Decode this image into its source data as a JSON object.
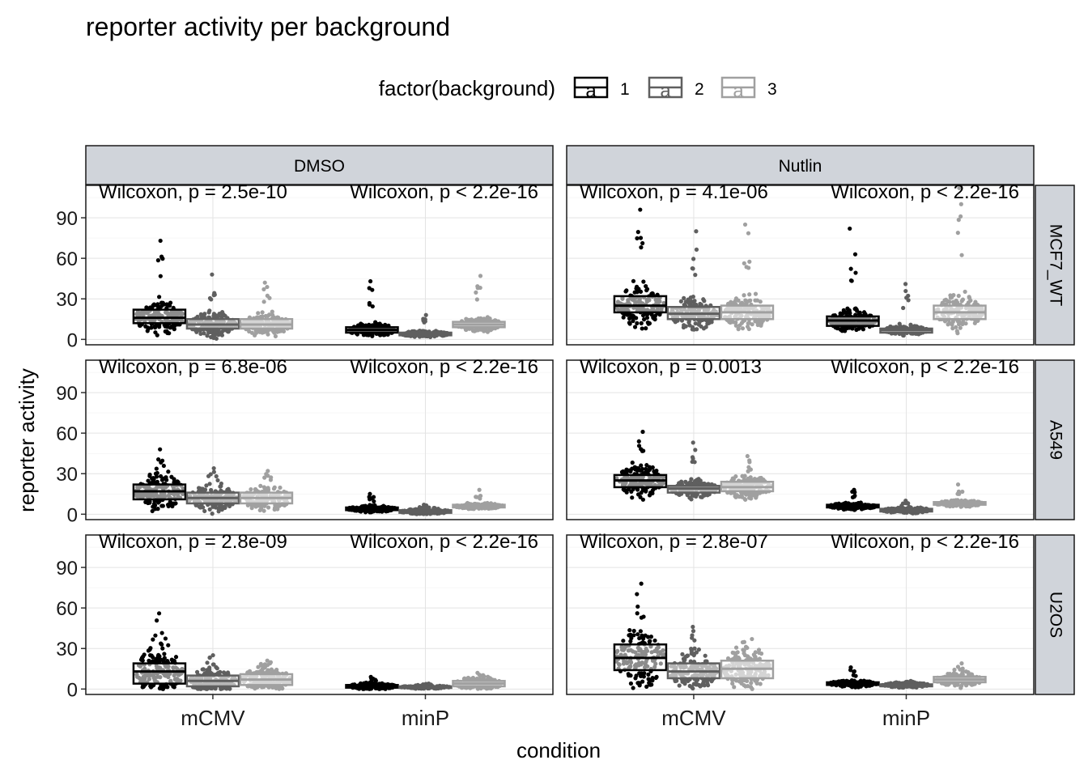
{
  "chart_data": {
    "type": "boxplot",
    "title": "reporter activity per background",
    "xlabel": "condition",
    "ylabel": "reporter activity",
    "ylim": [
      -4,
      114
    ],
    "yticks": [
      0,
      30,
      60,
      90
    ],
    "grid": true,
    "legend": {
      "title": "factor(background)",
      "placement": "top",
      "entries": [
        "1",
        "2",
        "3"
      ],
      "key_glyph": "a"
    },
    "colors": {
      "1": "#000000",
      "2": "#5f5f5f",
      "3": "#a0a0a0"
    },
    "categories": [
      "mCMV",
      "minP"
    ],
    "facet_cols": [
      "DMSO",
      "Nutlin"
    ],
    "facet_rows": [
      "MCF7_WT",
      "A549",
      "U2OS"
    ],
    "panels": [
      {
        "row": "MCF7_WT",
        "col": "DMSO",
        "annotations": [
          "Wilcoxon, p = 2.5e-10",
          "Wilcoxon, p < 2.2e-16"
        ],
        "groups": {
          "mCMV": [
            {
              "bg": "1",
              "q1": 12,
              "median": 16,
              "q3": 22,
              "max": 73
            },
            {
              "bg": "2",
              "q1": 8,
              "median": 11,
              "q3": 15,
              "max": 48
            },
            {
              "bg": "3",
              "q1": 8,
              "median": 11,
              "q3": 15,
              "max": 42
            }
          ],
          "minP": [
            {
              "bg": "1",
              "q1": 5,
              "median": 7,
              "q3": 9,
              "max": 43
            },
            {
              "bg": "2",
              "q1": 3,
              "median": 4,
              "q3": 5,
              "max": 18
            },
            {
              "bg": "3",
              "q1": 9,
              "median": 11,
              "q3": 13,
              "max": 47
            }
          ]
        }
      },
      {
        "row": "MCF7_WT",
        "col": "Nutlin",
        "annotations": [
          "Wilcoxon, p = 4.1e-06",
          "Wilcoxon, p < 2.2e-16"
        ],
        "groups": {
          "mCMV": [
            {
              "bg": "1",
              "q1": 20,
              "median": 25,
              "q3": 32,
              "max": 96
            },
            {
              "bg": "2",
              "q1": 15,
              "median": 19,
              "q3": 24,
              "max": 80
            },
            {
              "bg": "3",
              "q1": 15,
              "median": 20,
              "q3": 25,
              "max": 85
            }
          ],
          "minP": [
            {
              "bg": "1",
              "q1": 10,
              "median": 14,
              "q3": 17,
              "max": 82
            },
            {
              "bg": "2",
              "q1": 5,
              "median": 7,
              "q3": 8,
              "max": 41
            },
            {
              "bg": "3",
              "q1": 15,
              "median": 20,
              "q3": 25,
              "max": 112
            }
          ]
        }
      },
      {
        "row": "A549",
        "col": "DMSO",
        "annotations": [
          "Wilcoxon, p = 6.8e-06",
          "Wilcoxon, p < 2.2e-16"
        ],
        "groups": {
          "mCMV": [
            {
              "bg": "1",
              "q1": 11,
              "median": 17,
              "q3": 22,
              "max": 48
            },
            {
              "bg": "2",
              "q1": 8,
              "median": 12,
              "q3": 16,
              "max": 34
            },
            {
              "bg": "3",
              "q1": 8,
              "median": 12,
              "q3": 16,
              "max": 32
            }
          ],
          "minP": [
            {
              "bg": "1",
              "q1": 3,
              "median": 4,
              "q3": 5,
              "max": 15
            },
            {
              "bg": "2",
              "q1": 1,
              "median": 2,
              "q3": 3,
              "max": 7
            },
            {
              "bg": "3",
              "q1": 5,
              "median": 6,
              "q3": 7,
              "max": 18
            }
          ]
        }
      },
      {
        "row": "A549",
        "col": "Nutlin",
        "annotations": [
          "Wilcoxon, p = 0.0013",
          "Wilcoxon, p < 2.2e-16"
        ],
        "groups": {
          "mCMV": [
            {
              "bg": "1",
              "q1": 20,
              "median": 25,
              "q3": 29,
              "max": 61
            },
            {
              "bg": "2",
              "q1": 16,
              "median": 19,
              "q3": 21,
              "max": 53
            },
            {
              "bg": "3",
              "q1": 17,
              "median": 20,
              "q3": 24,
              "max": 43
            }
          ],
          "minP": [
            {
              "bg": "1",
              "q1": 5,
              "median": 6,
              "q3": 7,
              "max": 18
            },
            {
              "bg": "2",
              "q1": 2,
              "median": 3,
              "q3": 4,
              "max": 10
            },
            {
              "bg": "3",
              "q1": 7,
              "median": 8,
              "q3": 9,
              "max": 22
            }
          ]
        }
      },
      {
        "row": "U2OS",
        "col": "DMSO",
        "annotations": [
          "Wilcoxon, p = 2.8e-09",
          "Wilcoxon, p < 2.2e-16"
        ],
        "groups": {
          "mCMV": [
            {
              "bg": "1",
              "q1": 4,
              "median": 13,
              "q3": 19,
              "max": 56
            },
            {
              "bg": "2",
              "q1": 2,
              "median": 6,
              "q3": 10,
              "max": 25
            },
            {
              "bg": "3",
              "q1": 3,
              "median": 7,
              "q3": 11,
              "max": 21
            }
          ],
          "minP": [
            {
              "bg": "1",
              "q1": 1,
              "median": 2,
              "q3": 3,
              "max": 9
            },
            {
              "bg": "2",
              "q1": 1,
              "median": 1.5,
              "q3": 2,
              "max": 4
            },
            {
              "bg": "3",
              "q1": 2,
              "median": 4,
              "q3": 6,
              "max": 12
            }
          ]
        }
      },
      {
        "row": "U2OS",
        "col": "Nutlin",
        "annotations": [
          "Wilcoxon, p = 2.8e-07",
          "Wilcoxon, p < 2.2e-16"
        ],
        "groups": {
          "mCMV": [
            {
              "bg": "1",
              "q1": 14,
              "median": 23,
              "q3": 33,
              "max": 78
            },
            {
              "bg": "2",
              "q1": 8,
              "median": 13,
              "q3": 19,
              "max": 46
            },
            {
              "bg": "3",
              "q1": 8,
              "median": 15,
              "q3": 21,
              "max": 37
            }
          ],
          "minP": [
            {
              "bg": "1",
              "q1": 3,
              "median": 4,
              "q3": 5,
              "max": 16
            },
            {
              "bg": "2",
              "q1": 2,
              "median": 3,
              "q3": 3.5,
              "max": 6
            },
            {
              "bg": "3",
              "q1": 5,
              "median": 7,
              "q3": 9,
              "max": 19
            }
          ]
        }
      }
    ]
  }
}
